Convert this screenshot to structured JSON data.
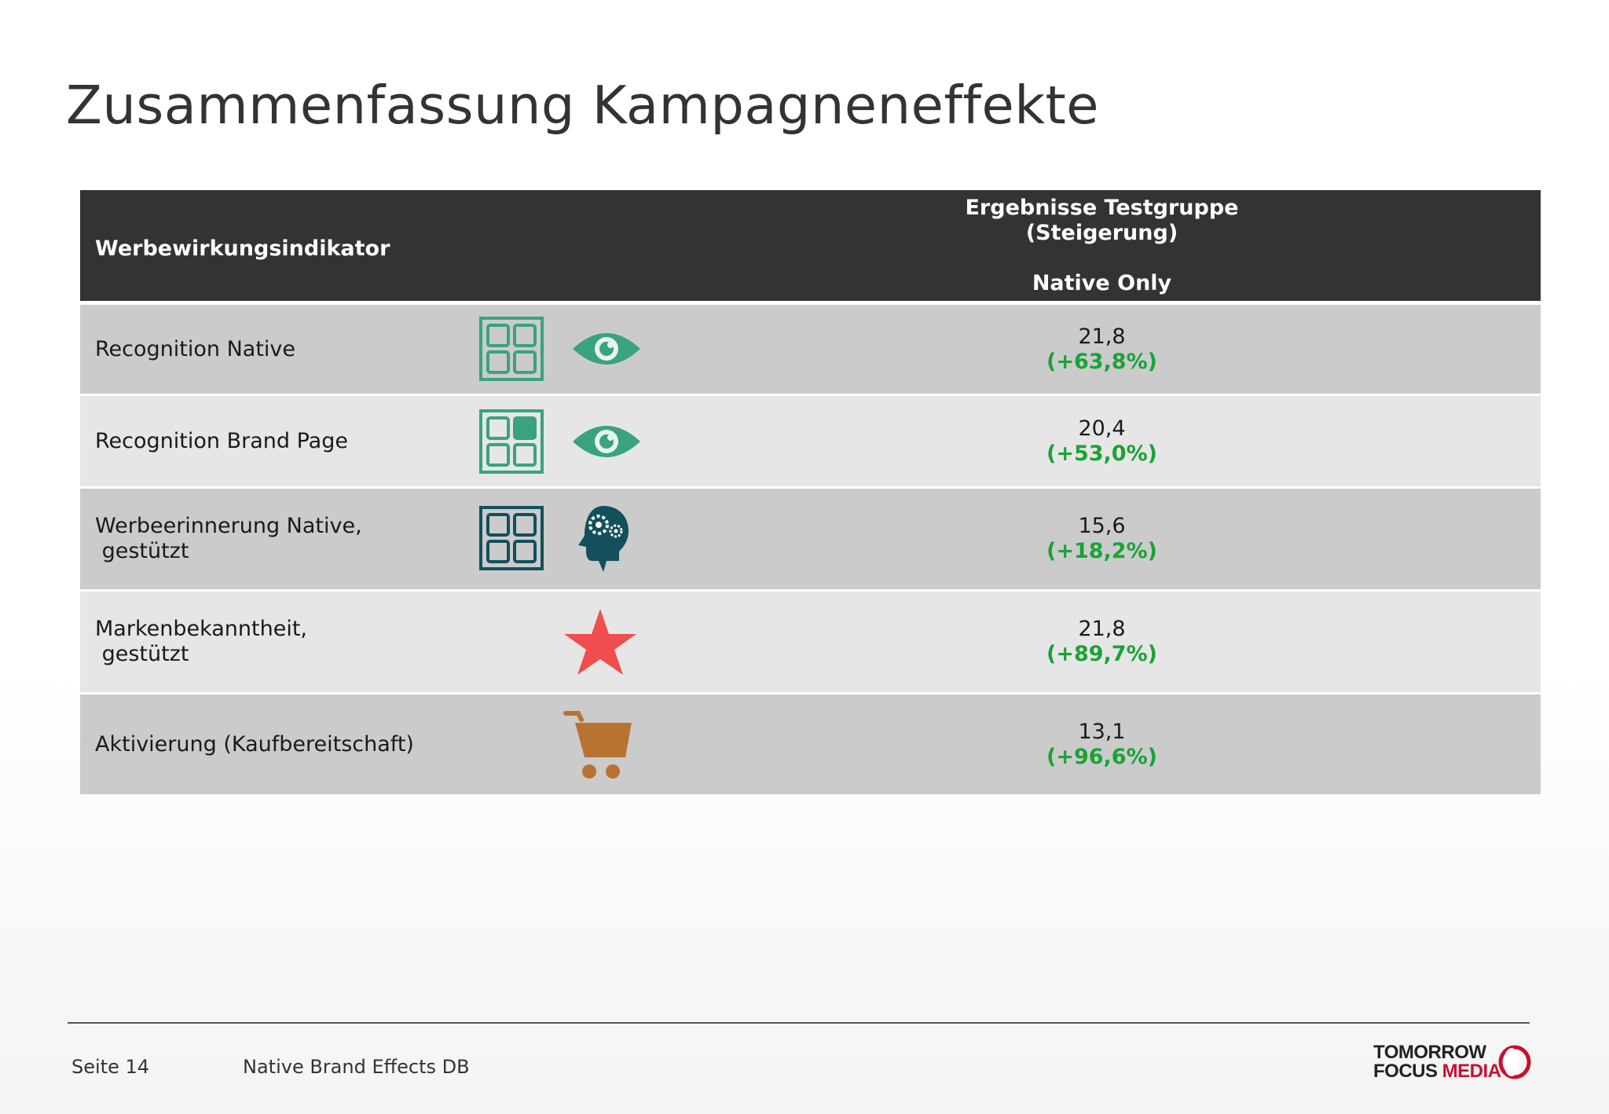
{
  "title": "Zusammenfassung Kampagneneffekte",
  "table": {
    "header_left": "Werbewirkungsindikator",
    "header_right_line1": "Ergebnisse Testgruppe",
    "header_right_line2": "(Steigerung)",
    "header_right_line3": "Native Only",
    "rows": [
      {
        "label": "Recognition Native",
        "value": "21,8",
        "change": "(+63,8%)",
        "icons": [
          "grid-icon",
          "eye-icon"
        ]
      },
      {
        "label": "Recognition Brand Page",
        "value": "20,4",
        "change": "(+53,0%)",
        "icons": [
          "grid-highlight-icon",
          "eye-icon"
        ]
      },
      {
        "label": "Werbeerinnerung Native,\n gestützt",
        "value": "15,6",
        "change": "(+18,2%)",
        "icons": [
          "grid-icon",
          "brain-gears-icon"
        ]
      },
      {
        "label": "Markenbekanntheit,\n gestützt",
        "value": "21,8",
        "change": "(+89,7%)",
        "icons": [
          "star-icon"
        ]
      },
      {
        "label": "Aktivierung (Kaufbereitschaft)",
        "value": "13,1",
        "change": "(+96,6%)",
        "icons": [
          "shopping-cart-icon"
        ]
      }
    ]
  },
  "colors": {
    "header_bg": "#333333",
    "row_dark": "#cbcbcb",
    "row_light": "#e6e6e6",
    "change_green": "#1aa335",
    "icon_teal": "#3aa281",
    "icon_dark_teal": "#134f5c",
    "star_red": "#f04e4e",
    "cart_orange": "#b87333",
    "logo_red": "#c8102e"
  },
  "footer": {
    "page": "Seite 14",
    "doc": "Native Brand Effects DB",
    "logo_line1": "TOMORROW",
    "logo_line2a": "FOCUS ",
    "logo_line2b": "MEDIA"
  }
}
